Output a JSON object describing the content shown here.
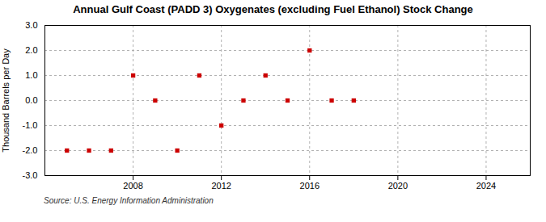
{
  "chart_data": {
    "type": "scatter",
    "title": "Annual Gulf Coast (PADD 3) Oxygenates (excluding Fuel Ethanol) Stock Change",
    "ylabel": "Thousand Barrels per Day",
    "source": "Source: U.S. Energy Information Administration",
    "x": [
      2005,
      2006,
      2007,
      2008,
      2009,
      2010,
      2011,
      2012,
      2013,
      2014,
      2015,
      2016,
      2017,
      2018
    ],
    "values": [
      -2.0,
      -2.0,
      -2.0,
      1.0,
      0.0,
      -2.0,
      1.0,
      -1.0,
      0.0,
      1.0,
      0.0,
      2.0,
      0.0,
      0.0
    ],
    "color": "#cc0000",
    "marker": "square",
    "xlim": [
      2004,
      2026
    ],
    "xticks": [
      2008,
      2012,
      2016,
      2020,
      2024
    ],
    "ylim": [
      -3.0,
      3.0
    ],
    "yticks": [
      {
        "value": -3.0,
        "label": "-3.0"
      },
      {
        "value": -2.0,
        "label": "-2.0"
      },
      {
        "value": -1.0,
        "label": "-1.0"
      },
      {
        "value": 0.0,
        "label": "0.0"
      },
      {
        "value": 1.0,
        "label": "1.0"
      },
      {
        "value": 2.0,
        "label": "2.0"
      },
      {
        "value": 3.0,
        "label": "3.0"
      }
    ],
    "grid": true
  }
}
